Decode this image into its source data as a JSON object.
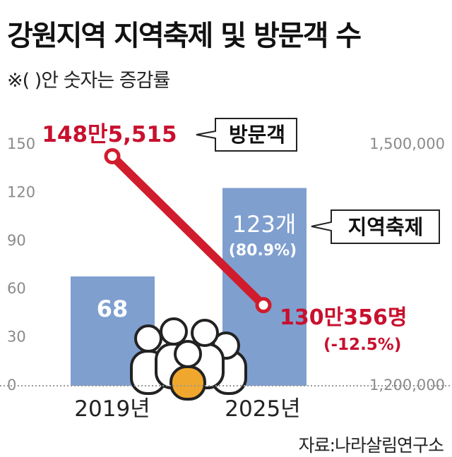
{
  "title": "강원지역 지역축제 및 방문객 수",
  "note": "※(        )안 숫자는 증감률",
  "source": "자료:나라살림연구소",
  "colors": {
    "bar": "#7f9fcf",
    "line": "#d01c2c",
    "axis_text": "#8a8a8a",
    "callout_red": "#c8102e",
    "people_fill": "#f0a72e"
  },
  "icon": "people-crowd-icon",
  "chart_data": {
    "type": "bar+line",
    "categories": [
      "2019년",
      "2025년"
    ],
    "left_axis": {
      "ticks": [
        "0",
        "30",
        "60",
        "90",
        "120",
        "150"
      ],
      "range": [
        0,
        150
      ]
    },
    "right_axis": {
      "ticks": [
        "1,200,000",
        "1,500,000"
      ],
      "range": [
        1200000,
        1500000
      ]
    },
    "series": [
      {
        "name": "지역축제",
        "kind": "bar",
        "axis": "left",
        "values": [
          68,
          123
        ],
        "labels": [
          "68",
          "123개"
        ],
        "change": [
          "",
          "(80.9%)"
        ]
      },
      {
        "name": "방문객",
        "kind": "line",
        "axis": "right",
        "values": [
          1485515,
          1300356
        ],
        "labels": [
          "148만5,515",
          "130만356명"
        ],
        "change": [
          "",
          "(-12.5%)"
        ]
      }
    ]
  }
}
